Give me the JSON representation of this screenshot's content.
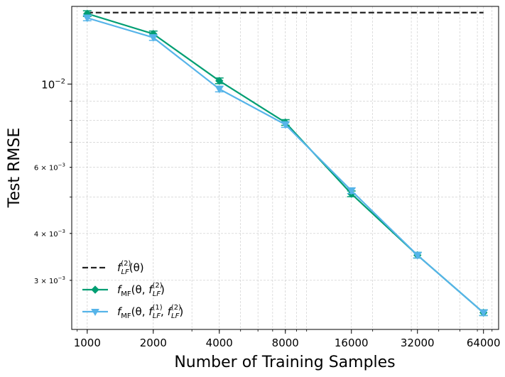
{
  "chart_data": {
    "type": "line",
    "title": "",
    "xlabel": "Number of Training Samples",
    "ylabel": "Test RMSE",
    "xscale": "log2",
    "yscale": "log10",
    "x": [
      1000,
      2000,
      4000,
      8000,
      16000,
      32000,
      64000
    ],
    "x_tick_labels": [
      "1000",
      "2000",
      "4000",
      "8000",
      "16000",
      "32000",
      "64000"
    ],
    "xlim": [
      850,
      75000
    ],
    "ylim": [
      0.00222,
      0.0161
    ],
    "y_ticks": [
      {
        "value": 0.01,
        "base": "10",
        "exp": "−2"
      },
      {
        "value": 0.006,
        "base": "6 × 10",
        "exp": "−3"
      },
      {
        "value": 0.004,
        "base": "4 × 10",
        "exp": "−3"
      },
      {
        "value": 0.003,
        "base": "3 × 10",
        "exp": "−3"
      }
    ],
    "grid": true,
    "legend_position": "lower-left",
    "series": [
      {
        "name": "LF2",
        "legend": {
          "f": "f",
          "sub": "LF",
          "sup": "(2)",
          "arg": "(θ)"
        },
        "color": "#222222",
        "style": "dashed",
        "marker": "none",
        "x": [
          1000,
          64000
        ],
        "values": [
          0.0155,
          0.0155
        ]
      },
      {
        "name": "MF2",
        "legend": {
          "f": "f",
          "sub": "MF",
          "open": "(θ, ",
          "f2": "f",
          "sub2": "LF",
          "sup2": "(2)",
          "close": ")"
        },
        "color": "#009e73",
        "style": "solid",
        "marker": "diamond",
        "x": [
          1000,
          2000,
          4000,
          8000,
          16000,
          32000,
          64000
        ],
        "values": [
          0.0154,
          0.0136,
          0.0102,
          0.0079,
          0.0051,
          0.0035,
          0.00246
        ]
      },
      {
        "name": "MF12",
        "legend": {
          "f": "f",
          "sub": "MF",
          "open": "(θ, ",
          "f1": "f",
          "sub1": "LF",
          "sup1": "(1)",
          "comma": ", ",
          "f2": "f",
          "sub2": "LF",
          "sup2": "(2)",
          "close": ")"
        },
        "color": "#56b4e9",
        "style": "solid",
        "marker": "triangle-down",
        "x": [
          1000,
          2000,
          4000,
          8000,
          16000,
          32000,
          64000
        ],
        "values": [
          0.015,
          0.0133,
          0.0097,
          0.0078,
          0.0052,
          0.0035,
          0.00246
        ]
      }
    ]
  }
}
